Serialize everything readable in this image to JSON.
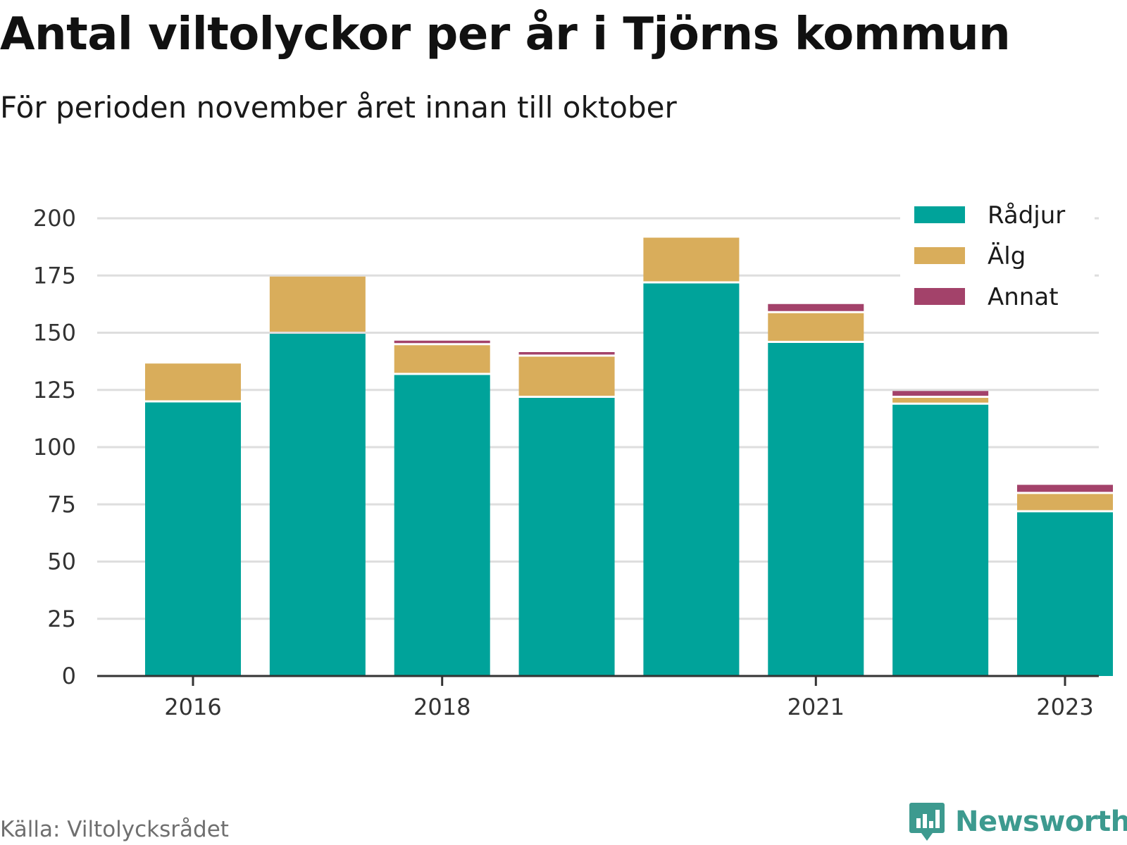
{
  "header": {
    "title": "Antal viltolyckor per år i Tjörns kommun",
    "subtitle": "För perioden november året innan till oktober"
  },
  "footer": {
    "source": "Källa: Viltolycksrådet",
    "brand": "Newsworthy"
  },
  "colors": {
    "radjur": "#00a39a",
    "alg": "#d9ad5b",
    "annat": "#a3426a",
    "grid": "#dedede",
    "axis": "#333333",
    "brand": "#3d9a8f"
  },
  "chart_data": {
    "type": "bar",
    "stacked": true,
    "categories": [
      "2016",
      "2017",
      "2018",
      "2019",
      "2020",
      "2021",
      "2022",
      "2023"
    ],
    "x_tick_labels": [
      "2016",
      "2018",
      "2021",
      "2023"
    ],
    "series": [
      {
        "name": "Rådjur",
        "color": "#00a39a",
        "values": [
          120,
          150,
          132,
          122,
          172,
          146,
          119,
          72
        ]
      },
      {
        "name": "Älg",
        "color": "#d9ad5b",
        "values": [
          17,
          25,
          13,
          18,
          20,
          13,
          3,
          8
        ]
      },
      {
        "name": "Annat",
        "color": "#a3426a",
        "values": [
          0,
          0,
          2,
          2,
          0,
          4,
          3,
          4
        ]
      }
    ],
    "ylim": [
      0,
      200
    ],
    "y_ticks": [
      0,
      25,
      50,
      75,
      100,
      125,
      150,
      175,
      200
    ],
    "grid": true,
    "legend_position": "top-right"
  }
}
